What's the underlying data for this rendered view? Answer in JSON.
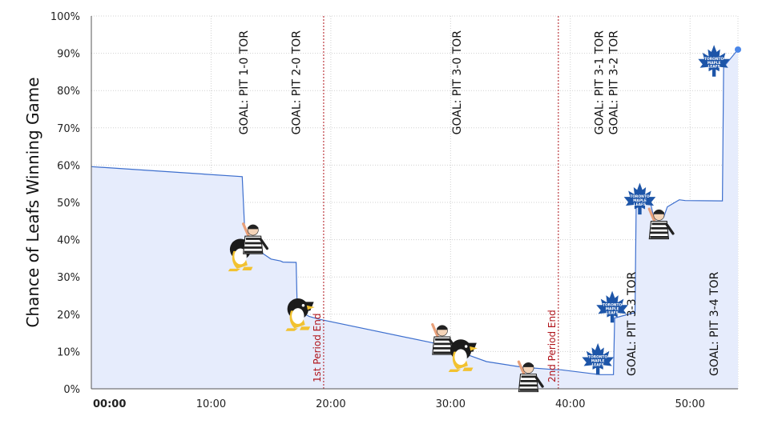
{
  "chart_data": {
    "type": "area",
    "title": "",
    "xlabel": "",
    "ylabel": "Chance of Leafs Winning Game",
    "xlim": [
      0,
      54
    ],
    "ylim": [
      0,
      100
    ],
    "x_ticks": [
      {
        "value": 0,
        "label": "00:00",
        "bold": true
      },
      {
        "value": 10,
        "label": "10:00",
        "bold": false
      },
      {
        "value": 20,
        "label": "20:00",
        "bold": false
      },
      {
        "value": 30,
        "label": "30:00",
        "bold": false
      },
      {
        "value": 40,
        "label": "40:00",
        "bold": false
      },
      {
        "value": 50,
        "label": "50:00",
        "bold": false
      }
    ],
    "y_ticks": [
      {
        "value": 0,
        "label": "0%"
      },
      {
        "value": 10,
        "label": "10%"
      },
      {
        "value": 20,
        "label": "20%"
      },
      {
        "value": 30,
        "label": "30%"
      },
      {
        "value": 40,
        "label": "40%"
      },
      {
        "value": 50,
        "label": "50%"
      },
      {
        "value": 60,
        "label": "60%"
      },
      {
        "value": 70,
        "label": "70%"
      },
      {
        "value": 80,
        "label": "80%"
      },
      {
        "value": 90,
        "label": "90%"
      },
      {
        "value": 100,
        "label": "100%"
      }
    ],
    "grid": true,
    "series": [
      {
        "color": "#3d6fce",
        "fill": "#e6ecfc",
        "x": [
          0,
          12.6,
          12.8,
          13.9,
          15.0,
          15.8,
          16.0,
          17.1,
          17.2,
          18.2,
          19.0,
          29.0,
          30.5,
          33.0,
          36.0,
          38.5,
          39.2,
          42.5,
          43.6,
          43.7,
          45.2,
          45.4,
          45.5,
          46.4,
          46.6,
          47.0,
          47.8,
          48.1,
          49.1,
          49.6,
          52.7,
          52.8,
          54.0
        ],
        "y": [
          59.6,
          56.9,
          43.0,
          37.2,
          34.8,
          34.3,
          34.0,
          33.9,
          21.1,
          19.4,
          18.7,
          12.0,
          10.2,
          7.3,
          5.8,
          5.2,
          5.1,
          3.8,
          3.8,
          19.0,
          20.3,
          20.3,
          50.0,
          51.3,
          51.2,
          45.5,
          46.0,
          48.8,
          50.7,
          50.5,
          50.4,
          86.3,
          91.0
        ]
      }
    ],
    "period_markers": [
      {
        "x": 19.4,
        "label": "1st Period End",
        "color": "#b0141b"
      },
      {
        "x": 39.0,
        "label": "2nd Period End",
        "color": "#b0141b"
      }
    ],
    "goal_labels": [
      {
        "x": 12.7,
        "label": "GOAL: PIT 1-0 TOR",
        "position": "top"
      },
      {
        "x": 17.1,
        "label": "GOAL: PIT 2-0 TOR",
        "position": "top"
      },
      {
        "x": 30.5,
        "label": "GOAL: PIT 3-0 TOR",
        "position": "top"
      },
      {
        "x": 42.4,
        "label": "GOAL: PIT 3-1 TOR",
        "position": "top"
      },
      {
        "x": 43.6,
        "label": "GOAL: PIT 3-2 TOR",
        "position": "top"
      },
      {
        "x": 45.1,
        "label": "GOAL: PIT 3-3 TOR",
        "position": "bottom"
      },
      {
        "x": 52.0,
        "label": "GOAL: PIT 3-4 TOR",
        "position": "bottom"
      }
    ],
    "event_icons": [
      {
        "type": "penguin-icon",
        "x": 12.6,
        "y": 36
      },
      {
        "type": "referee-icon",
        "x": 13.5,
        "y": 40
      },
      {
        "type": "penguin-icon",
        "x": 17.4,
        "y": 20
      },
      {
        "type": "referee-icon",
        "x": 29.3,
        "y": 13
      },
      {
        "type": "penguin-icon",
        "x": 31.0,
        "y": 9
      },
      {
        "type": "referee-icon",
        "x": 36.5,
        "y": 3
      },
      {
        "type": "maple-leaf-icon",
        "x": 42.3,
        "y": 8
      },
      {
        "type": "maple-leaf-icon",
        "x": 43.5,
        "y": 22
      },
      {
        "type": "maple-leaf-icon",
        "x": 45.8,
        "y": 51
      },
      {
        "type": "referee-icon",
        "x": 47.4,
        "y": 44
      },
      {
        "type": "maple-leaf-icon",
        "x": 52.0,
        "y": 88
      }
    ],
    "end_marker": {
      "x": 54.0,
      "y": 91.0,
      "color": "#4a86e8"
    }
  }
}
